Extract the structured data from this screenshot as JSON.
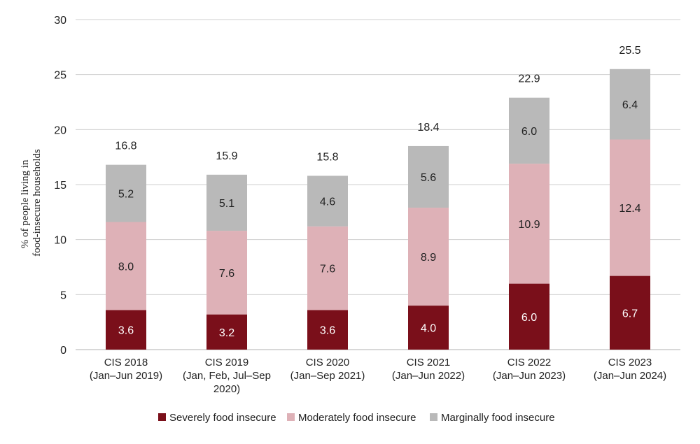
{
  "chart_data": {
    "type": "bar",
    "stacked": true,
    "title": "",
    "xlabel": "",
    "ylabel": "% of people living in food-insecure households",
    "ylabel_lines": [
      "% of people living in",
      "food-insecure households"
    ],
    "ylim": [
      0,
      30
    ],
    "yticks": [
      0,
      5,
      10,
      15,
      20,
      25,
      30
    ],
    "grid": true,
    "legend_position": "bottom",
    "categories": [
      [
        "CIS 2018",
        "(Jan–Jun 2019)"
      ],
      [
        "CIS 2019",
        "(Jan, Feb, Jul–Sep",
        "2020)"
      ],
      [
        "CIS 2020",
        "(Jan–Sep 2021)"
      ],
      [
        "CIS 2021",
        "(Jan–Jun 2022)"
      ],
      [
        "CIS 2022",
        "(Jan–Jun 2023)"
      ],
      [
        "CIS 2023",
        "(Jan–Jun 2024)"
      ]
    ],
    "series": [
      {
        "name": "Severely food insecure",
        "color": "#7a0f1a",
        "label_color": "#ffffff",
        "values": [
          3.6,
          3.2,
          3.6,
          4.0,
          6.0,
          6.7
        ]
      },
      {
        "name": "Moderately food insecure",
        "color": "#deb1b7",
        "label_color": "#222222",
        "values": [
          8.0,
          7.6,
          7.6,
          8.9,
          10.9,
          12.4
        ]
      },
      {
        "name": "Marginally food insecure",
        "color": "#b9b9b9",
        "label_color": "#222222",
        "values": [
          5.2,
          5.1,
          4.6,
          5.6,
          6.0,
          6.4
        ]
      }
    ],
    "totals": [
      16.8,
      15.9,
      15.8,
      18.4,
      22.9,
      25.5
    ]
  }
}
